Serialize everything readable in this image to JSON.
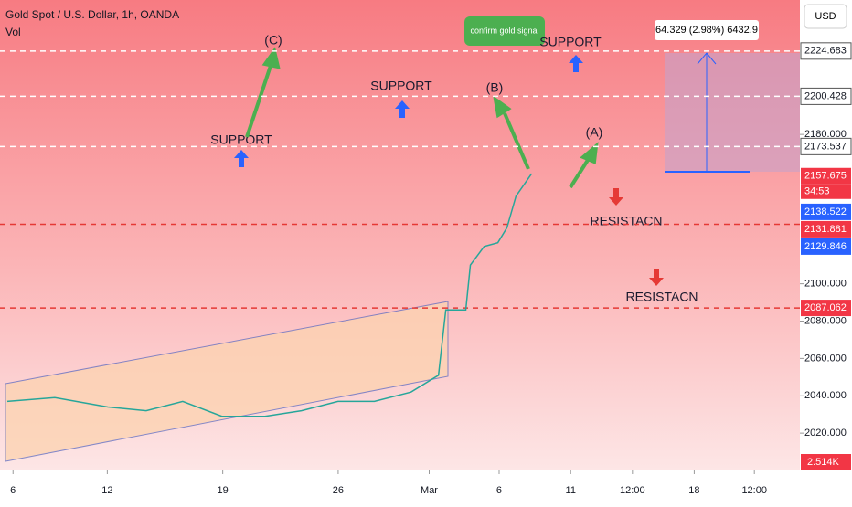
{
  "header": {
    "title": "Gold Spot / U.S. Dollar, 1h, OANDA",
    "volume_label": "Vol",
    "currency": "USD"
  },
  "chart_data": {
    "type": "line",
    "series": [
      {
        "name": "Gold Spot / U.S. Dollar",
        "color": "#26a69a",
        "x": [
          0.45,
          3.37,
          6.63,
          8.99,
          11.24,
          13.65,
          16.29,
          18.54,
          20.79,
          23.03,
          25.28,
          26.97,
          27.42,
          28.65,
          28.93,
          29.78,
          30.62,
          31.18,
          31.74,
          32.3,
          32.7
        ],
        "values": [
          2037,
          2039,
          2034,
          2032,
          2037,
          2029,
          2029,
          2032,
          2037,
          2037,
          2042,
          2051,
          2086,
          2086,
          2110,
          2120,
          2122,
          2130,
          2147,
          2154,
          2159
        ]
      }
    ],
    "xlim": [
      0,
      49.2
    ],
    "ylim": [
      2000,
      2252
    ],
    "xticks": [
      {
        "value": 0.8,
        "label": "6"
      },
      {
        "value": 6.6,
        "label": "12"
      },
      {
        "value": 13.7,
        "label": "19"
      },
      {
        "value": 20.8,
        "label": "26"
      },
      {
        "value": 26.4,
        "label": "Mar"
      },
      {
        "value": 30.7,
        "label": "6"
      },
      {
        "value": 35.1,
        "label": "11"
      },
      {
        "value": 38.9,
        "label": "12:00"
      },
      {
        "value": 42.7,
        "label": "18"
      },
      {
        "value": 46.4,
        "label": "12:00"
      }
    ],
    "yticks": [
      {
        "value": 2020,
        "label": "2020.000"
      },
      {
        "value": 2040,
        "label": "2040.000"
      },
      {
        "value": 2060,
        "label": "2060.000"
      },
      {
        "value": 2080,
        "label": "2080.000"
      },
      {
        "value": 2100,
        "label": "2100.000"
      },
      {
        "value": 2180,
        "label": "2180.000"
      }
    ],
    "levels": [
      {
        "value": 2224.683,
        "color": "#ffffff"
      },
      {
        "value": 2200.428,
        "color": "#ffffff"
      },
      {
        "value": 2173.537,
        "color": "#ffffff"
      },
      {
        "value": 2131.881,
        "color": "#e53935"
      },
      {
        "value": 2087.062,
        "color": "#e53935"
      }
    ],
    "price_tags": [
      {
        "value": 2224.683,
        "color": "#ffffff"
      },
      {
        "value": 2200.428,
        "color": "#ffffff"
      },
      {
        "value": 2173.537,
        "color": "#ffffff"
      },
      {
        "value": 2157.675,
        "color": "#f23645"
      },
      {
        "value": 2138.522,
        "color": "#2962ff"
      },
      {
        "value": 2131.881,
        "color": "#f23645"
      },
      {
        "value": 2129.846,
        "color": "#2962ff"
      },
      {
        "value": 2087.062,
        "color": "#f23645"
      }
    ],
    "countdown": "34:53",
    "volume_tag": "2.514K"
  },
  "annotations": {
    "wave_c": "(C)",
    "wave_b": "(B)",
    "wave_a": "(A)",
    "support_1": "SUPPORT",
    "support_2": "SUPPORT",
    "support_3": "SUPPORT",
    "resistance_1": "RESISTACN",
    "resistance_2": "RESISTACN",
    "callout": "confirm gold signal",
    "measure": "64.329 (2.98%) 6432.9"
  }
}
